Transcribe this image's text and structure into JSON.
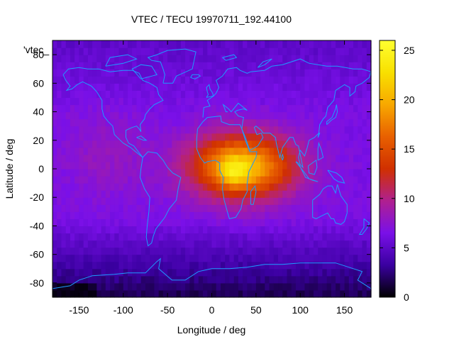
{
  "chart_data": {
    "type": "heatmap",
    "title": "VTEC / TECU 19970711_192.44100",
    "xlabel": "Longitude / deg",
    "ylabel": "Latitude / deg",
    "xlim": [
      -180,
      180
    ],
    "ylim": [
      -90,
      90
    ],
    "x_ticks": [
      -150,
      -100,
      -50,
      0,
      50,
      100,
      150
    ],
    "y_ticks": [
      -80,
      -60,
      -40,
      -20,
      0,
      20,
      40,
      60,
      80
    ],
    "x_tick_labels": [
      "-150",
      "-100",
      "-50",
      "0",
      "50",
      "100",
      "150"
    ],
    "y_tick_labels": [
      "-80",
      "-60",
      "-40",
      "-20",
      "0",
      "20",
      "40",
      "60",
      "80"
    ],
    "colorbar": {
      "range": [
        0,
        26
      ],
      "ticks": [
        0,
        5,
        10,
        15,
        20,
        25
      ],
      "tick_labels": [
        "0",
        "5",
        "10",
        "15",
        "20",
        "25"
      ],
      "colormap": [
        "#000000",
        "#3a00a0",
        "#7a10e8",
        "#b02090",
        "#d03000",
        "#e86000",
        "#f8a800",
        "#f8e000",
        "#ffff30"
      ]
    },
    "legend_entry": "'vtec_",
    "coastline_color": "#1e9bff",
    "grid_resolution_deg": 5,
    "peak": {
      "lon": 25,
      "lat": -2,
      "value": 25
    },
    "field_model": "background 2–8 TECU, equatorial anomaly peak ~25 TECU centered near lon 25, lat -2 spanning lon -30 to 115, lat -25 to 35"
  }
}
